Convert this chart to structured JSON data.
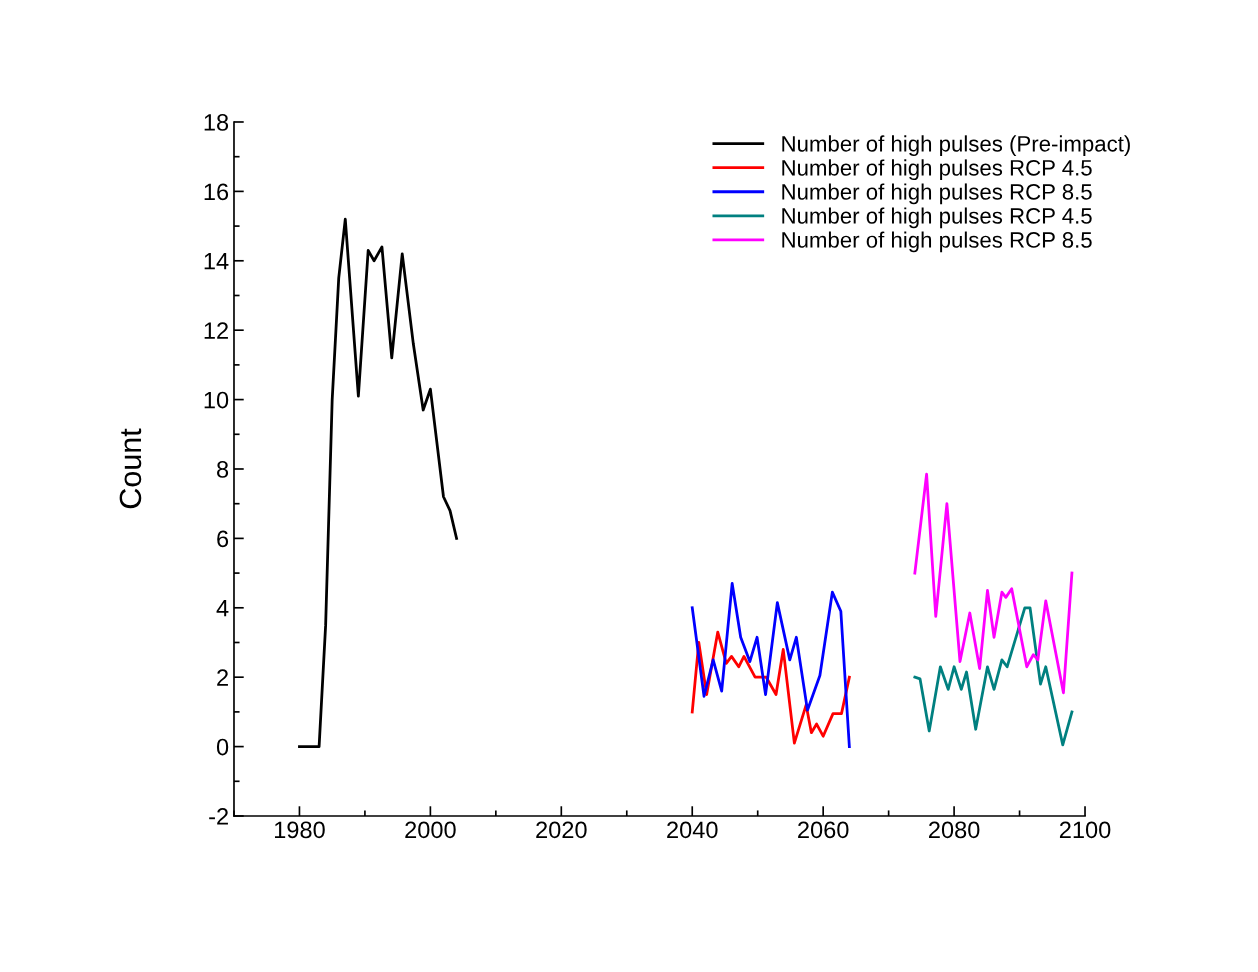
{
  "chart_data": {
    "type": "line",
    "ylabel": "Count",
    "xlim": [
      1970,
      2100
    ],
    "xticks": [
      1980,
      2000,
      2020,
      2040,
      2060,
      2080,
      2100
    ],
    "ylim": [
      -2,
      18
    ],
    "yticks": [
      -2,
      0,
      2,
      4,
      6,
      8,
      10,
      12,
      14,
      16,
      18
    ],
    "grid": false,
    "legend": "top right",
    "marker": "none",
    "line_style": "solid",
    "series": [
      {
        "name": "Number of high pulses (Pre-impact)",
        "color": "#000000",
        "x": [
          1980,
          1983,
          1984,
          1985,
          1986,
          1987,
          1989,
          1990.5,
          1991.4,
          1992.6,
          1994.1,
          1995.7,
          1997.4,
          1998.9,
          2000,
          2002,
          2003,
          2004
        ],
        "values": [
          0,
          0,
          3.5,
          10,
          13.5,
          15.2,
          10.1,
          14.3,
          14.0,
          14.4,
          11.2,
          14.2,
          11.6,
          9.7,
          10.3,
          7.2,
          6.8,
          6.0
        ]
      },
      {
        "name": "Number of high pulses RCP 4.5",
        "color": "#ff0000",
        "x": [
          2040,
          2041,
          2042.2,
          2043.9,
          2045.2,
          2046,
          2047.1,
          2047.9,
          2049.6,
          2051.3,
          2052.8,
          2053.9,
          2055.6,
          2057.4,
          2058.2,
          2059,
          2060,
          2061.5,
          2062.8,
          2064
        ],
        "values": [
          1.0,
          3.0,
          1.5,
          3.3,
          2.4,
          2.6,
          2.3,
          2.6,
          2.0,
          2.0,
          1.5,
          2.8,
          0.1,
          1.2,
          0.4,
          0.65,
          0.3,
          0.95,
          0.95,
          2.0
        ]
      },
      {
        "name": "Number of high pulses RCP 8.5",
        "color": "#0000ff",
        "x": [
          2040,
          2041.8,
          2043.2,
          2044.5,
          2046.1,
          2047.4,
          2048.8,
          2049.9,
          2051.2,
          2053,
          2054.9,
          2055.9,
          2057.6,
          2059.5,
          2061.4,
          2062.7,
          2064
        ],
        "values": [
          4.0,
          1.45,
          2.5,
          1.6,
          4.7,
          3.15,
          2.45,
          3.15,
          1.5,
          4.15,
          2.5,
          3.15,
          1.05,
          2.05,
          4.45,
          3.9,
          0
        ]
      },
      {
        "name": "Number of high pulses RCP 4.5",
        "color": "#008080",
        "x": [
          2074,
          2074.8,
          2076.2,
          2077.9,
          2079.1,
          2080,
          2081.1,
          2081.9,
          2083.3,
          2085.1,
          2086.1,
          2087.3,
          2088.1,
          2090.8,
          2091.6,
          2093.2,
          2094,
          2096.6,
          2098
        ],
        "values": [
          2.0,
          1.95,
          0.45,
          2.3,
          1.65,
          2.3,
          1.65,
          2.15,
          0.5,
          2.3,
          1.65,
          2.5,
          2.3,
          4.0,
          4.0,
          1.8,
          2.3,
          0.05,
          1.0
        ]
      },
      {
        "name": "Number of high pulses RCP 8.5",
        "color": "#ff00ff",
        "x": [
          2074,
          2075.8,
          2077.2,
          2078.9,
          2080.9,
          2082.4,
          2083.9,
          2085.1,
          2086.1,
          2087.3,
          2087.9,
          2088.8,
          2091.1,
          2092.1,
          2092.8,
          2094,
          2096.7,
          2098
        ],
        "values": [
          5.0,
          7.85,
          3.75,
          7.0,
          2.45,
          3.85,
          2.25,
          4.5,
          3.15,
          4.45,
          4.3,
          4.55,
          2.3,
          2.65,
          2.5,
          4.2,
          1.55,
          5.0
        ]
      }
    ]
  }
}
